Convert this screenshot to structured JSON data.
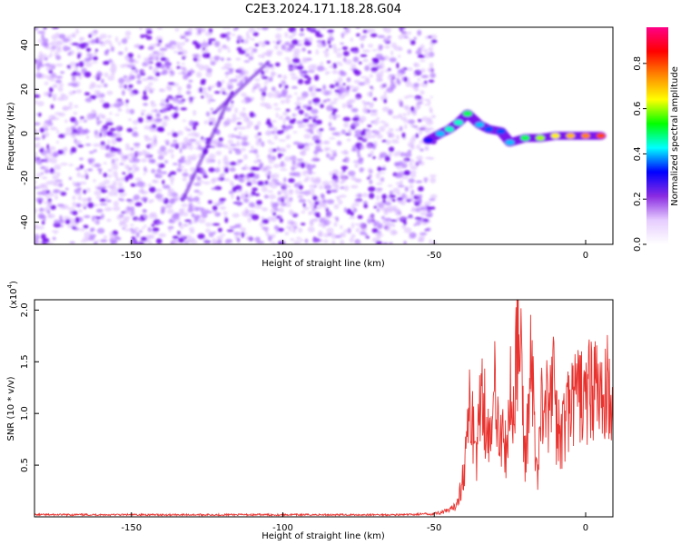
{
  "title": "C2E3.2024.171.18.28.G04",
  "chart_data": [
    {
      "type": "heatmap",
      "xlabel": "Height of straight line (km)",
      "ylabel": "Frequency (Hz)",
      "xlim": [
        -182,
        9
      ],
      "ylim": [
        -50,
        48
      ],
      "xticks": [
        -150,
        -100,
        -50,
        0
      ],
      "yticks": [
        -40,
        -20,
        0,
        20,
        40
      ],
      "colorbar": {
        "label": "Normalized spectral amplitude",
        "range": [
          0.0,
          0.96
        ],
        "ticks": [
          "0.0",
          "0.2",
          "0.4",
          "0.6",
          "0.8"
        ],
        "colors": [
          "#ffffff",
          "#e6ccff",
          "#8a2be2",
          "#0000ff",
          "#00ffff",
          "#00ff00",
          "#ffff00",
          "#ff8800",
          "#ff0000",
          "#ff0088"
        ]
      },
      "noise_region_x": [
        -182,
        -50
      ],
      "ridge": [
        {
          "x": -52,
          "y": -3,
          "a": 0.3
        },
        {
          "x": -48,
          "y": 0,
          "a": 0.4
        },
        {
          "x": -45,
          "y": 2,
          "a": 0.45
        },
        {
          "x": -42,
          "y": 5,
          "a": 0.45
        },
        {
          "x": -39,
          "y": 9,
          "a": 0.5
        },
        {
          "x": -35,
          "y": 4,
          "a": 0.4
        },
        {
          "x": -32,
          "y": 2,
          "a": 0.35
        },
        {
          "x": -28,
          "y": 1,
          "a": 0.35
        },
        {
          "x": -25,
          "y": -4,
          "a": 0.4
        },
        {
          "x": -20,
          "y": -2,
          "a": 0.5
        },
        {
          "x": -15,
          "y": -2,
          "a": 0.6
        },
        {
          "x": -10,
          "y": -1,
          "a": 0.65
        },
        {
          "x": -5,
          "y": -1,
          "a": 0.7
        },
        {
          "x": 0,
          "y": -1,
          "a": 0.75
        },
        {
          "x": 5,
          "y": -1,
          "a": 0.8
        }
      ]
    },
    {
      "type": "line",
      "xlabel": "Height of straight line (km)",
      "ylabel": "SNR (10 * v/v)",
      "scale_label": "(x10",
      "scale_exp": "4",
      "xlim": [
        -182,
        9
      ],
      "ylim": [
        0,
        2.1
      ],
      "yticks": [
        "0.5",
        "1.0",
        "1.5",
        "2.0"
      ],
      "ytick_values": [
        0.5,
        1.0,
        1.5,
        2.0
      ],
      "xticks": [
        -150,
        -100,
        -50,
        0
      ],
      "color": "#e8322e",
      "series": [
        {
          "x": [
            -182,
            -60,
            -50,
            -45,
            -43,
            -41,
            -40,
            -38,
            -36,
            -34,
            -33,
            -31,
            -30,
            -28,
            -26,
            -25,
            -24,
            -23,
            -22,
            -21,
            -20,
            -18,
            -16,
            -14,
            -12,
            -11,
            -10,
            -8,
            -6,
            -4,
            -2,
            0,
            2,
            4,
            6,
            8,
            9
          ],
          "y": [
            0.02,
            0.02,
            0.03,
            0.06,
            0.1,
            0.3,
            0.5,
            1.1,
            0.6,
            1.4,
            0.9,
            0.7,
            1.3,
            0.8,
            0.6,
            1.2,
            0.9,
            1.6,
            2.1,
            1.1,
            0.5,
            1.5,
            0.4,
            1.3,
            0.9,
            1.5,
            0.9,
            0.8,
            1.0,
            1.1,
            1.2,
            1.1,
            1.3,
            1.2,
            1.1,
            1.3,
            0.9
          ]
        }
      ]
    }
  ]
}
